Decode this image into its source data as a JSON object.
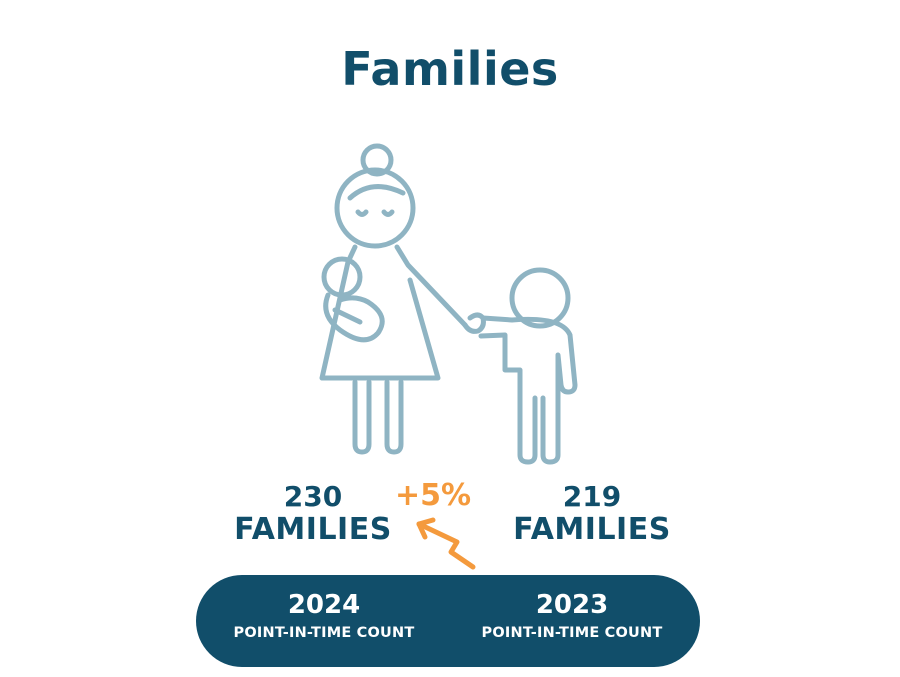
{
  "title": "Families",
  "illustration_icon": "mother-with-baby-and-child-icon",
  "change_arrow_icon": "zigzag-up-arrow-icon",
  "colors": {
    "title": "#114e6a",
    "stats": "#114e6a",
    "accent": "#f49a3d",
    "icon_stroke": "#8fb4c3",
    "pill_background": "#114e6a",
    "pill_text": "#ffffff"
  },
  "stats": {
    "current": {
      "number": "230",
      "label": "FAMILIES"
    },
    "previous": {
      "number": "219",
      "label": "FAMILIES"
    }
  },
  "change": "+5%",
  "pill": {
    "left": {
      "year": "2024",
      "caption": "POINT-IN-TIME COUNT"
    },
    "right": {
      "year": "2023",
      "caption": "POINT-IN-TIME COUNT"
    }
  }
}
